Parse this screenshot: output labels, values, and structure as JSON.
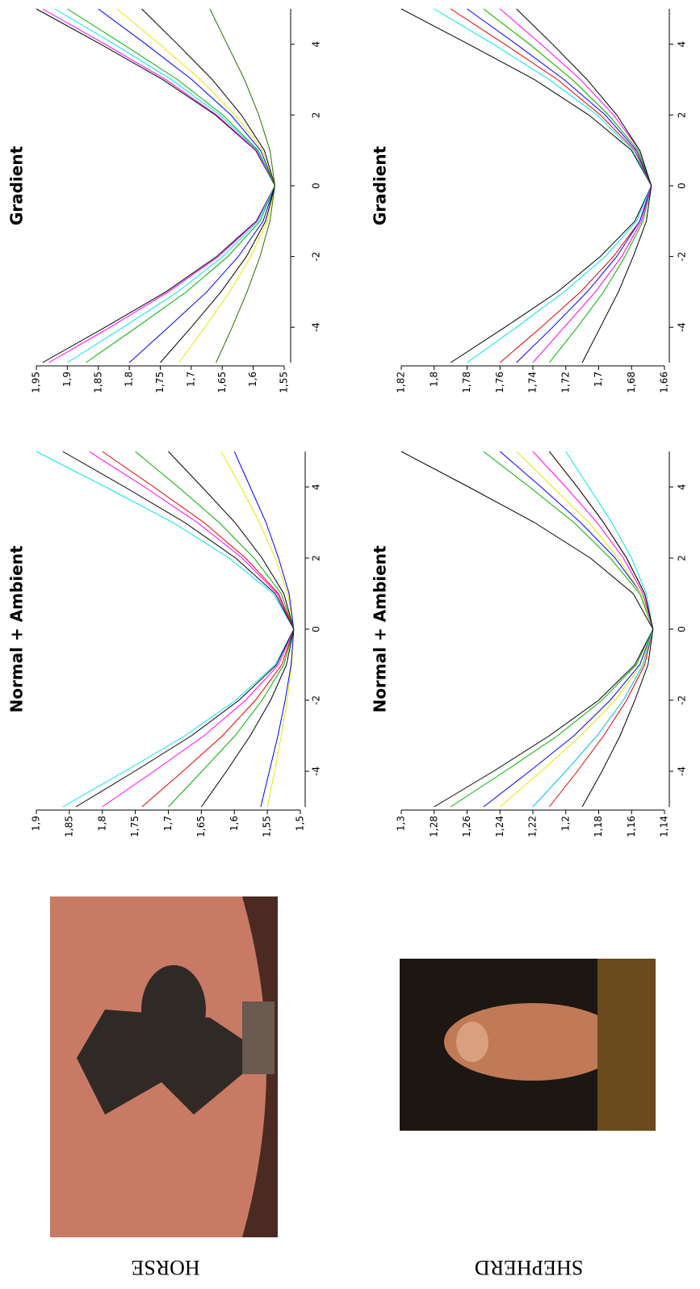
{
  "chart_data": [
    {
      "type": "line",
      "title": "Normal + Ambient",
      "x": [
        -5,
        -4,
        -3,
        -2,
        -1,
        0,
        1,
        2,
        3,
        4,
        5
      ],
      "xlim": [
        -5,
        5
      ],
      "xticks": [
        -4,
        -2,
        0,
        2,
        4
      ],
      "ylim": [
        1.5,
        1.9
      ],
      "yticks": [
        {
          "value": 1.5,
          "label": "1,5"
        },
        {
          "value": 1.55,
          "label": "1,55"
        },
        {
          "value": 1.6,
          "label": "1,6"
        },
        {
          "value": 1.65,
          "label": "1,65"
        },
        {
          "value": 1.7,
          "label": "1,7"
        },
        {
          "value": 1.75,
          "label": "1,75"
        },
        {
          "value": 1.8,
          "label": "1,8"
        },
        {
          "value": 1.85,
          "label": "1,85"
        },
        {
          "value": 1.9,
          "label": "1,9"
        }
      ],
      "series": [
        {
          "color": "#00e5ee",
          "values": [
            1.86,
            1.766,
            1.675,
            1.598,
            1.538,
            1.51,
            1.541,
            1.608,
            1.693,
            1.795,
            1.9
          ]
        },
        {
          "color": "#000000",
          "values": [
            1.84,
            1.751,
            1.665,
            1.593,
            1.536,
            1.51,
            1.538,
            1.598,
            1.675,
            1.766,
            1.86
          ]
        },
        {
          "color": "#ff00ff",
          "values": [
            1.8,
            1.722,
            1.646,
            1.583,
            1.533,
            1.51,
            1.535,
            1.588,
            1.656,
            1.736,
            1.82
          ]
        },
        {
          "color": "#e00000",
          "values": [
            1.74,
            1.678,
            1.618,
            1.568,
            1.528,
            1.51,
            1.533,
            1.583,
            1.646,
            1.722,
            1.8
          ]
        },
        {
          "color": "#00b000",
          "values": [
            1.7,
            1.649,
            1.599,
            1.558,
            1.525,
            1.51,
            1.529,
            1.57,
            1.623,
            1.685,
            1.75
          ]
        },
        {
          "color": "#000000",
          "values": [
            1.65,
            1.612,
            1.576,
            1.545,
            1.521,
            1.51,
            1.525,
            1.558,
            1.599,
            1.649,
            1.7
          ]
        },
        {
          "color": "#e8e800",
          "values": [
            1.55,
            1.539,
            1.529,
            1.52,
            1.513,
            1.51,
            1.519,
            1.538,
            1.562,
            1.59,
            1.62
          ]
        },
        {
          "color": "#0000ff",
          "values": [
            1.56,
            1.547,
            1.534,
            1.523,
            1.514,
            1.51,
            1.517,
            1.533,
            1.552,
            1.576,
            1.6
          ]
        }
      ]
    },
    {
      "type": "line",
      "title": "Gradient",
      "x": [
        -5,
        -4,
        -3,
        -2,
        -1,
        0,
        1,
        2,
        3,
        4,
        5
      ],
      "xlim": [
        -5,
        5
      ],
      "xticks": [
        -4,
        -2,
        0,
        2,
        4
      ],
      "ylim": [
        1.55,
        1.95
      ],
      "yticks": [
        {
          "value": 1.55,
          "label": "1,55"
        },
        {
          "value": 1.6,
          "label": "1,6"
        },
        {
          "value": 1.65,
          "label": "1,65"
        },
        {
          "value": 1.7,
          "label": "1,7"
        },
        {
          "value": 1.75,
          "label": "1,75"
        },
        {
          "value": 1.8,
          "label": "1,8"
        },
        {
          "value": 1.85,
          "label": "1,85"
        },
        {
          "value": 1.9,
          "label": "1,9"
        },
        {
          "value": 1.95,
          "label": "1,95"
        }
      ],
      "series": [
        {
          "color": "#000000",
          "values": [
            1.94,
            1.839,
            1.741,
            1.659,
            1.595,
            1.565,
            1.596,
            1.661,
            1.746,
            1.846,
            1.95
          ]
        },
        {
          "color": "#ff00ff",
          "values": [
            1.93,
            1.831,
            1.737,
            1.656,
            1.594,
            1.565,
            1.595,
            1.659,
            1.741,
            1.839,
            1.94
          ]
        },
        {
          "color": "#00e5ee",
          "values": [
            1.9,
            1.81,
            1.722,
            1.649,
            1.592,
            1.565,
            1.593,
            1.654,
            1.732,
            1.824,
            1.92
          ]
        },
        {
          "color": "#00b000",
          "values": [
            1.87,
            1.788,
            1.708,
            1.641,
            1.589,
            1.565,
            1.592,
            1.649,
            1.722,
            1.81,
            1.9
          ]
        },
        {
          "color": "#0000ff",
          "values": [
            1.8,
            1.737,
            1.675,
            1.624,
            1.584,
            1.565,
            1.588,
            1.636,
            1.699,
            1.773,
            1.85
          ]
        },
        {
          "color": "#e8e800",
          "values": [
            1.72,
            1.678,
            1.638,
            1.604,
            1.577,
            1.565,
            1.585,
            1.629,
            1.685,
            1.751,
            1.82
          ]
        },
        {
          "color": "#000000",
          "values": [
            1.75,
            1.7,
            1.652,
            1.611,
            1.58,
            1.565,
            1.582,
            1.619,
            1.666,
            1.722,
            1.78
          ]
        },
        {
          "color": "#2e6b00",
          "values": [
            1.66,
            1.634,
            1.61,
            1.589,
            1.573,
            1.565,
            1.573,
            1.591,
            1.614,
            1.642,
            1.67
          ]
        }
      ]
    },
    {
      "type": "line",
      "title": "Normal + Ambient",
      "x": [
        -5,
        -4,
        -3,
        -2,
        -1,
        0,
        1,
        2,
        3,
        4,
        5
      ],
      "xlim": [
        -5,
        5
      ],
      "xticks": [
        -4,
        -2,
        0,
        2,
        4
      ],
      "ylim": [
        1.14,
        1.3
      ],
      "yticks": [
        {
          "value": 1.14,
          "label": "1,14"
        },
        {
          "value": 1.16,
          "label": "1,16"
        },
        {
          "value": 1.18,
          "label": "1,18"
        },
        {
          "value": 1.2,
          "label": "1,2"
        },
        {
          "value": 1.22,
          "label": "1,22"
        },
        {
          "value": 1.24,
          "label": "1,24"
        },
        {
          "value": 1.26,
          "label": "1,26"
        },
        {
          "value": 1.28,
          "label": "1,28"
        },
        {
          "value": 1.3,
          "label": "1,3"
        }
      ],
      "series": [
        {
          "color": "#000000",
          "values": [
            1.28,
            1.244,
            1.21,
            1.18,
            1.158,
            1.147,
            1.159,
            1.185,
            1.219,
            1.259,
            1.3
          ]
        },
        {
          "color": "#00b000",
          "values": [
            1.27,
            1.237,
            1.205,
            1.178,
            1.157,
            1.147,
            1.155,
            1.173,
            1.195,
            1.222,
            1.25
          ]
        },
        {
          "color": "#0000ff",
          "values": [
            1.25,
            1.222,
            1.195,
            1.173,
            1.155,
            1.147,
            1.154,
            1.17,
            1.191,
            1.215,
            1.24
          ]
        },
        {
          "color": "#e8e800",
          "values": [
            1.24,
            1.215,
            1.191,
            1.17,
            1.154,
            1.147,
            1.154,
            1.168,
            1.186,
            1.208,
            1.23
          ]
        },
        {
          "color": "#ff00ff",
          "values": [
            1.22,
            1.2,
            1.181,
            1.165,
            1.153,
            1.147,
            1.153,
            1.165,
            1.181,
            1.2,
            1.22
          ]
        },
        {
          "color": "#e00000",
          "values": [
            1.21,
            1.193,
            1.177,
            1.163,
            1.152,
            1.147,
            1.152,
            1.163,
            1.177,
            1.193,
            1.21
          ]
        },
        {
          "color": "#00e5ee",
          "values": [
            1.22,
            1.2,
            1.181,
            1.165,
            1.153,
            1.147,
            1.151,
            1.16,
            1.172,
            1.186,
            1.2
          ]
        },
        {
          "color": "#000000",
          "values": [
            1.19,
            1.178,
            1.167,
            1.158,
            1.15,
            1.147,
            1.152,
            1.163,
            1.177,
            1.193,
            1.21
          ]
        }
      ]
    },
    {
      "type": "line",
      "title": "Gradient",
      "x": [
        -5,
        -4,
        -3,
        -2,
        -1,
        0,
        1,
        2,
        3,
        4,
        5
      ],
      "xlim": [
        -5,
        5
      ],
      "xticks": [
        -4,
        -2,
        0,
        2,
        4
      ],
      "ylim": [
        1.66,
        1.82
      ],
      "yticks": [
        {
          "value": 1.66,
          "label": "1,66"
        },
        {
          "value": 1.68,
          "label": "1,68"
        },
        {
          "value": 1.7,
          "label": "1,7"
        },
        {
          "value": 1.72,
          "label": "1,72"
        },
        {
          "value": 1.74,
          "label": "1,74"
        },
        {
          "value": 1.76,
          "label": "1,76"
        },
        {
          "value": 1.78,
          "label": "1,78"
        },
        {
          "value": 1.8,
          "label": "1,8"
        },
        {
          "value": 1.82,
          "label": "1,82"
        }
      ],
      "series": [
        {
          "color": "#000000",
          "values": [
            1.79,
            1.757,
            1.725,
            1.699,
            1.678,
            1.668,
            1.68,
            1.706,
            1.739,
            1.779,
            1.82
          ]
        },
        {
          "color": "#00e5ee",
          "values": [
            1.78,
            1.75,
            1.721,
            1.696,
            1.677,
            1.668,
            1.679,
            1.701,
            1.73,
            1.764,
            1.8
          ]
        },
        {
          "color": "#e00000",
          "values": [
            1.76,
            1.735,
            1.711,
            1.691,
            1.675,
            1.668,
            1.678,
            1.699,
            1.725,
            1.757,
            1.79
          ]
        },
        {
          "color": "#0000ff",
          "values": [
            1.75,
            1.728,
            1.707,
            1.689,
            1.675,
            1.668,
            1.677,
            1.696,
            1.721,
            1.75,
            1.78
          ]
        },
        {
          "color": "#e8e800",
          "values": [
            1.74,
            1.721,
            1.702,
            1.686,
            1.674,
            1.668,
            1.676,
            1.694,
            1.716,
            1.742,
            1.77
          ]
        },
        {
          "color": "#00b000",
          "values": [
            1.73,
            1.713,
            1.697,
            1.684,
            1.673,
            1.668,
            1.676,
            1.694,
            1.716,
            1.742,
            1.77
          ]
        },
        {
          "color": "#ff00ff",
          "values": [
            1.74,
            1.721,
            1.702,
            1.686,
            1.674,
            1.668,
            1.675,
            1.691,
            1.711,
            1.735,
            1.76
          ]
        },
        {
          "color": "#000000",
          "values": [
            1.71,
            1.699,
            1.688,
            1.679,
            1.671,
            1.668,
            1.675,
            1.689,
            1.707,
            1.728,
            1.75
          ]
        }
      ]
    }
  ],
  "figure": {
    "panels": [
      {
        "label": "HORSE"
      },
      {
        "label": "SHEPHERD"
      }
    ]
  }
}
